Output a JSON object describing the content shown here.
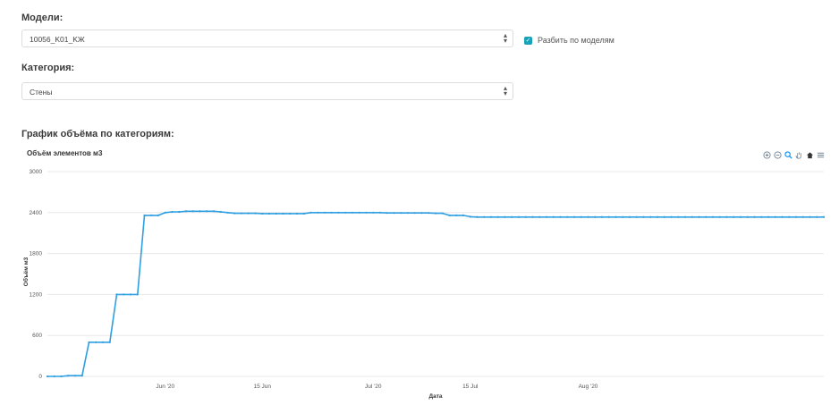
{
  "models": {
    "label": "Модели:",
    "selected": "10056_K01_KЖ",
    "split_checkbox": {
      "label": "Разбить по моделям",
      "checked": true
    }
  },
  "category": {
    "label": "Категория:",
    "selected": "Стены"
  },
  "chart_section": {
    "heading": "График объёма по категориям:"
  },
  "chart_data": {
    "type": "line",
    "title": "Объём элементов м3",
    "xlabel": "Дата",
    "ylabel": "Объём м3",
    "ylim": [
      0,
      3000
    ],
    "yticks": [
      0,
      600,
      1200,
      1800,
      2400,
      3000
    ],
    "ytick_labels": [
      "0",
      "600",
      "1200",
      "1800",
      "2400",
      "3000"
    ],
    "xlim": [
      "2020-05-15",
      "2020-09-04"
    ],
    "xticks": [
      {
        "date": "2020-06-01",
        "label": "Jun '20"
      },
      {
        "date": "2020-06-15",
        "label": "15 Jun"
      },
      {
        "date": "2020-07-01",
        "label": "Jul '20"
      },
      {
        "date": "2020-07-15",
        "label": "15 Jul"
      },
      {
        "date": "2020-08-01",
        "label": "Aug '20"
      }
    ],
    "grid": true,
    "color": "#2e9fe0",
    "series": [
      {
        "x": [
          "2020-05-15",
          "2020-05-16",
          "2020-05-17",
          "2020-05-18",
          "2020-05-19",
          "2020-05-20",
          "2020-05-21",
          "2020-05-22",
          "2020-05-23",
          "2020-05-24",
          "2020-05-25",
          "2020-05-26",
          "2020-05-27",
          "2020-05-28",
          "2020-05-29",
          "2020-05-30",
          "2020-05-31",
          "2020-06-01",
          "2020-06-02",
          "2020-06-03",
          "2020-06-04",
          "2020-06-05",
          "2020-06-06",
          "2020-06-07",
          "2020-06-08",
          "2020-06-09",
          "2020-06-10",
          "2020-06-11",
          "2020-06-12",
          "2020-06-13",
          "2020-06-14",
          "2020-06-15",
          "2020-06-16",
          "2020-06-17",
          "2020-06-18",
          "2020-06-19",
          "2020-06-20",
          "2020-06-21",
          "2020-06-22",
          "2020-06-23",
          "2020-06-24",
          "2020-06-25",
          "2020-06-26",
          "2020-06-27",
          "2020-06-28",
          "2020-06-29",
          "2020-06-30",
          "2020-07-01",
          "2020-07-02",
          "2020-07-03",
          "2020-07-04",
          "2020-07-05",
          "2020-07-06",
          "2020-07-07",
          "2020-07-08",
          "2020-07-09",
          "2020-07-10",
          "2020-07-11",
          "2020-07-12",
          "2020-07-13",
          "2020-07-14",
          "2020-07-15",
          "2020-07-16",
          "2020-07-17",
          "2020-07-18",
          "2020-07-19",
          "2020-07-20",
          "2020-07-21",
          "2020-07-22",
          "2020-07-23",
          "2020-07-24",
          "2020-07-25",
          "2020-07-26",
          "2020-07-27",
          "2020-07-28",
          "2020-07-29",
          "2020-07-30",
          "2020-07-31",
          "2020-08-01",
          "2020-08-02",
          "2020-08-03",
          "2020-08-04",
          "2020-08-05",
          "2020-08-06",
          "2020-08-07",
          "2020-08-08",
          "2020-08-09",
          "2020-08-10",
          "2020-08-11",
          "2020-08-12",
          "2020-08-13",
          "2020-08-14",
          "2020-08-15",
          "2020-08-16",
          "2020-08-17",
          "2020-08-18",
          "2020-08-19",
          "2020-08-20",
          "2020-08-21",
          "2020-08-22",
          "2020-08-23",
          "2020-08-24",
          "2020-08-25",
          "2020-08-26",
          "2020-08-27",
          "2020-08-28",
          "2020-08-29",
          "2020-08-30",
          "2020-08-31",
          "2020-09-01",
          "2020-09-02",
          "2020-09-03",
          "2020-09-04"
        ],
        "values": [
          0,
          0,
          0,
          10,
          10,
          10,
          500,
          500,
          500,
          500,
          1200,
          1200,
          1200,
          1200,
          2360,
          2360,
          2360,
          2400,
          2410,
          2410,
          2420,
          2420,
          2420,
          2420,
          2420,
          2410,
          2400,
          2390,
          2390,
          2390,
          2390,
          2385,
          2385,
          2385,
          2385,
          2385,
          2385,
          2385,
          2400,
          2400,
          2400,
          2400,
          2400,
          2400,
          2400,
          2400,
          2400,
          2400,
          2400,
          2395,
          2395,
          2395,
          2395,
          2395,
          2395,
          2395,
          2390,
          2390,
          2360,
          2360,
          2360,
          2340,
          2335,
          2335,
          2335,
          2335,
          2335,
          2335,
          2335,
          2335,
          2335,
          2335,
          2335,
          2335,
          2335,
          2335,
          2335,
          2335,
          2335,
          2335,
          2335,
          2335,
          2335,
          2335,
          2335,
          2335,
          2335,
          2335,
          2335,
          2335,
          2335,
          2335,
          2335,
          2335,
          2335,
          2335,
          2335,
          2335,
          2335,
          2335,
          2335,
          2335,
          2335,
          2335,
          2335,
          2335,
          2335,
          2335,
          2335,
          2335,
          2335,
          2335,
          2335
        ]
      }
    ]
  }
}
